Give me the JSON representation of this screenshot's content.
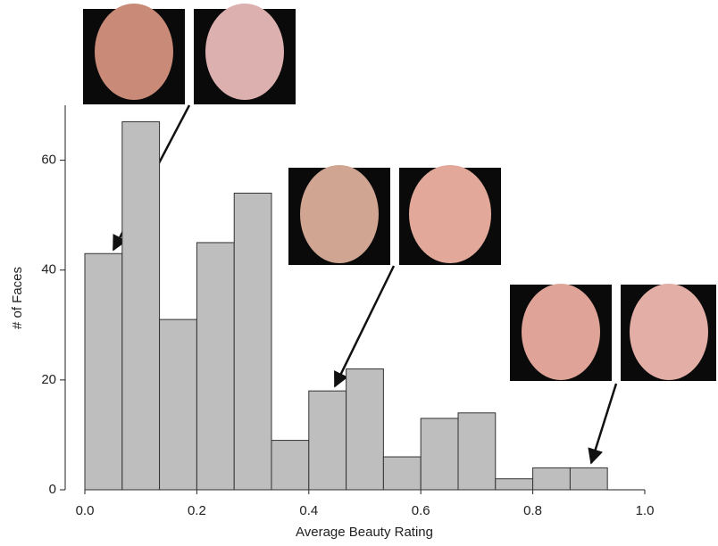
{
  "chart_data": {
    "type": "histogram",
    "x_label": "Average Beauty Rating",
    "y_label": "# of Faces",
    "bins": [
      0,
      0.0667,
      0.1333,
      0.2,
      0.2667,
      0.3333,
      0.4,
      0.4667,
      0.5333,
      0.6,
      0.6667,
      0.7333,
      0.8,
      0.8667,
      0.9333
    ],
    "values": [
      43,
      67,
      31,
      45,
      54,
      9,
      18,
      22,
      6,
      13,
      14,
      2,
      4,
      4
    ],
    "color": "#bebebe",
    "xlim": [
      0,
      1
    ],
    "xticks": [
      {
        "value": 0,
        "label": "0.0"
      },
      0.2,
      0.4,
      0.6,
      0.8,
      {
        "value": 1,
        "label": "1.0"
      }
    ],
    "ylim": [
      0,
      70
    ],
    "yticks": [
      0,
      20,
      40,
      60
    ],
    "grid": false
  }
}
